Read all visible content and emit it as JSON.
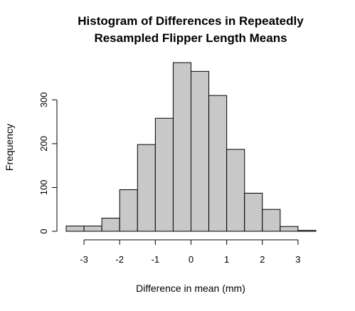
{
  "chart_data": {
    "type": "bar",
    "title_lines": [
      "Histogram of Differences in Repeatedly",
      "Resampled Flipper Length Means"
    ],
    "xlabel": "Difference in mean (mm)",
    "ylabel": "Frequency",
    "bins": [
      {
        "start": -3.5,
        "end": -3.0,
        "count": 12
      },
      {
        "start": -3.0,
        "end": -2.5,
        "count": 12
      },
      {
        "start": -2.5,
        "end": -2.0,
        "count": 30
      },
      {
        "start": -2.0,
        "end": -1.5,
        "count": 95
      },
      {
        "start": -1.5,
        "end": -1.0,
        "count": 198
      },
      {
        "start": -1.0,
        "end": -0.5,
        "count": 258
      },
      {
        "start": -0.5,
        "end": 0.0,
        "count": 385
      },
      {
        "start": 0.0,
        "end": 0.5,
        "count": 365
      },
      {
        "start": 0.5,
        "end": 1.0,
        "count": 310
      },
      {
        "start": 1.0,
        "end": 1.5,
        "count": 187
      },
      {
        "start": 1.5,
        "end": 2.0,
        "count": 87
      },
      {
        "start": 2.0,
        "end": 2.5,
        "count": 50
      },
      {
        "start": 2.5,
        "end": 3.0,
        "count": 11
      },
      {
        "start": 3.0,
        "end": 3.5,
        "count": 2
      }
    ],
    "x_ticks": [
      -3,
      -2,
      -1,
      0,
      1,
      2,
      3
    ],
    "x_tick_labels": [
      "-3",
      "-2",
      "-1",
      "0",
      "1",
      "2",
      "3"
    ],
    "y_ticks": [
      0,
      100,
      200,
      300
    ],
    "y_tick_labels": [
      "0",
      "100",
      "200",
      "300"
    ],
    "xlim": [
      -3.5,
      3.5
    ],
    "ylim": [
      0,
      385
    ],
    "grid": false,
    "bar_fill": "#c8c8c8",
    "bar_stroke": "#000000"
  }
}
